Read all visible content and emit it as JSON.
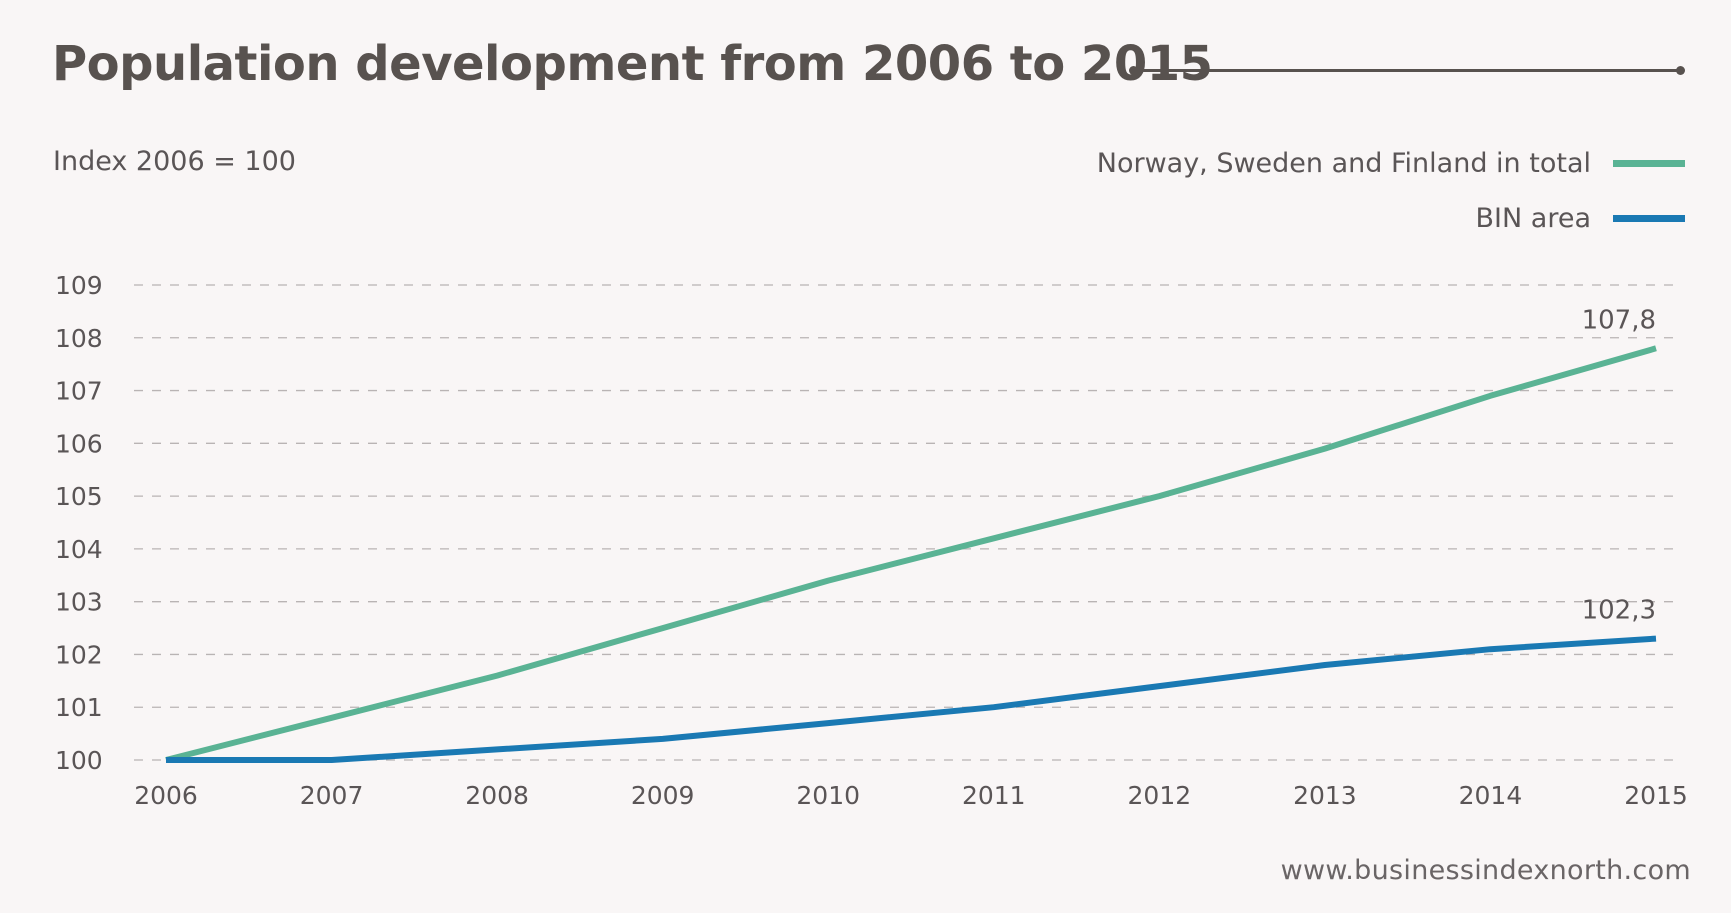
{
  "page": {
    "title": "Population development from 2006 to 2015",
    "subtitle": "Index 2006 = 100",
    "source": "www.businessindexnorth.com"
  },
  "legend": {
    "items": [
      {
        "label": "Norway, Sweden and Finland in total",
        "color": "#5ab394"
      },
      {
        "label": "BIN area",
        "color": "#1a79b3"
      }
    ]
  },
  "chart_data": {
    "type": "line",
    "title": "Population development from 2006 to 2015",
    "subtitle": "Index 2006 = 100",
    "xlabel": "",
    "ylabel": "",
    "x": [
      "2006",
      "2007",
      "2008",
      "2009",
      "2010",
      "2011",
      "2012",
      "2013",
      "2014",
      "2015"
    ],
    "ylim": [
      100,
      109
    ],
    "yticks": [
      "100",
      "101",
      "102",
      "103",
      "104",
      "105",
      "106",
      "107",
      "108",
      "109"
    ],
    "grid": "horizontal-dashed",
    "legend_position": "top-right",
    "series": [
      {
        "name": "Norway, Sweden and Finland in total",
        "color": "#5ab394",
        "values": [
          100,
          100.8,
          101.6,
          102.5,
          103.4,
          104.2,
          105.0,
          105.9,
          106.9,
          107.8
        ],
        "end_label": "107,8"
      },
      {
        "name": "BIN area",
        "color": "#1a79b3",
        "values": [
          100,
          100.0,
          100.2,
          100.4,
          100.7,
          101.0,
          101.4,
          101.8,
          102.1,
          102.3
        ],
        "end_label": "102,3"
      }
    ]
  }
}
